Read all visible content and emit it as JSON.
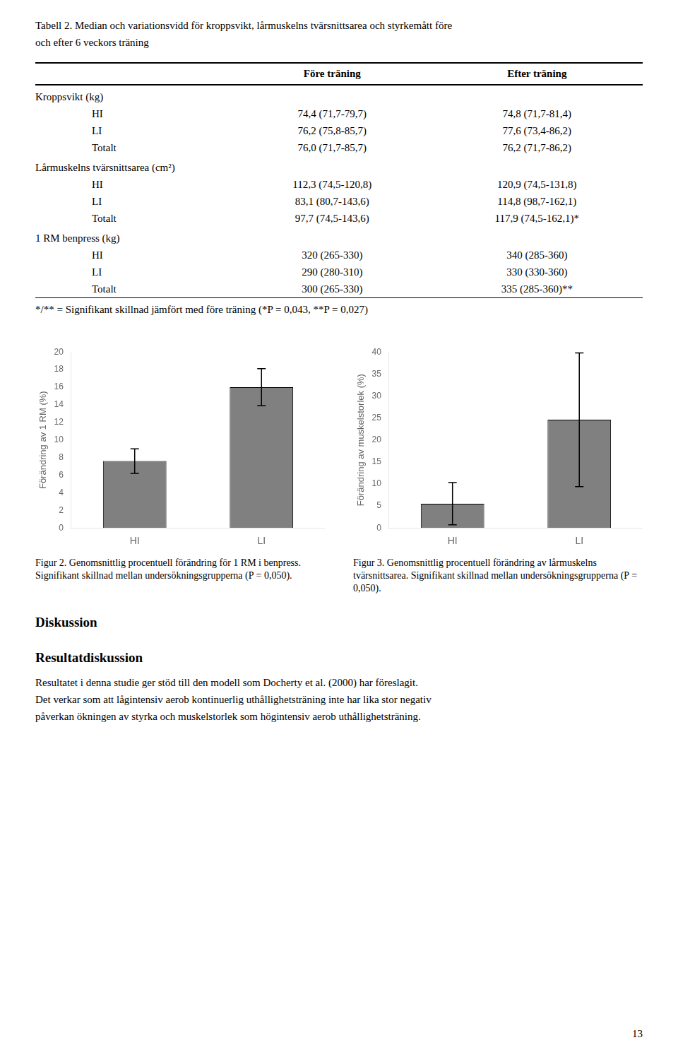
{
  "chart_data": [
    {
      "type": "bar",
      "title": "Figur 2. Genomsnittlig procentuell förändring för 1 RM i benpress. Signifikant skillnad mellan undersökningsgrupperna (P = 0,050).",
      "categories": [
        "HI",
        "LI"
      ],
      "values": [
        7.6,
        16.0
      ],
      "errors": [
        1.4,
        2.1
      ],
      "color": "#808080",
      "ylabel": "Förändring av 1 RM (%)",
      "ylim": [
        0,
        20
      ],
      "yticks": [
        0,
        2,
        4,
        6,
        8,
        10,
        12,
        14,
        16,
        18,
        20
      ],
      "grid": false
    },
    {
      "type": "bar",
      "title": "Figur 3. Genomsnittlig procentuell förändring av lårmuskelns tvärsnittsarea. Signifikant skillnad mellan undersökningsgrupperna (P = 0,050).",
      "categories": [
        "HI",
        "LI"
      ],
      "values": [
        5.5,
        24.6
      ],
      "errors": [
        4.8,
        15.2
      ],
      "color": "#808080",
      "ylabel": "Förändring av muskelstorlek (%)",
      "ylim": [
        0,
        40
      ],
      "yticks": [
        0,
        5,
        10,
        15,
        20,
        25,
        30,
        35,
        40
      ],
      "grid": false
    }
  ],
  "annotations": [
    "Tabell 2. Median och variationsvidd för kroppsvikt, lårmuskelns tvärsnittsarea och styrkemått före",
    "och efter 6 veckors träning",
    [
      "Före träning",
      "Efter träning"
    ],
    [
      "Kroppsvikt (kg)"
    ],
    [
      "HI",
      "74,4 (71,7-79,7)",
      "74,8 (71,7-81,4)"
    ],
    [
      "LI",
      "76,2 (75,8-85,7)",
      "77,6 (73,4-86,2)"
    ],
    [
      "Totalt",
      "76,0 (71,7-85,7)",
      "76,2 (71,7-86,2)"
    ],
    [
      "Lårmuskelns tvärsnittsarea (cm²)"
    ],
    [
      "HI",
      "112,3 (74,5-120,8)",
      "120,9 (74,5-131,8)"
    ],
    [
      "LI",
      "83,1 (80,7-143,6)",
      "114,8 (98,7-162,1)"
    ],
    [
      "Totalt",
      "97,7 (74,5-143,6)",
      "117,9 (74,5-162,1)*"
    ],
    [
      "1 RM benpress (kg)"
    ],
    [
      "HI",
      "320 (265-330)",
      "340 (285-360)"
    ],
    [
      "LI",
      "290 (280-310)",
      "330 (330-360)"
    ],
    [
      "Totalt",
      "300 (265-330)",
      "335 (285-360)**"
    ],
    "*/** = Signifikant skillnad jämfört med före träning (*P = 0,043, **P = 0,027)",
    "Diskussion",
    "Resultatdiskussion",
    "Resultatet i denna studie ger stöd till den modell som Docherty et al. (2000) har föreslagit.",
    "Det verkar som att lågintensiv aerob kontinuerlig uthållighetsträning inte har lika stor negativ",
    "påverkan ökningen av styrka och muskelstorlek som högintensiv aerob uthållighetsträning.",
    "13"
  ]
}
